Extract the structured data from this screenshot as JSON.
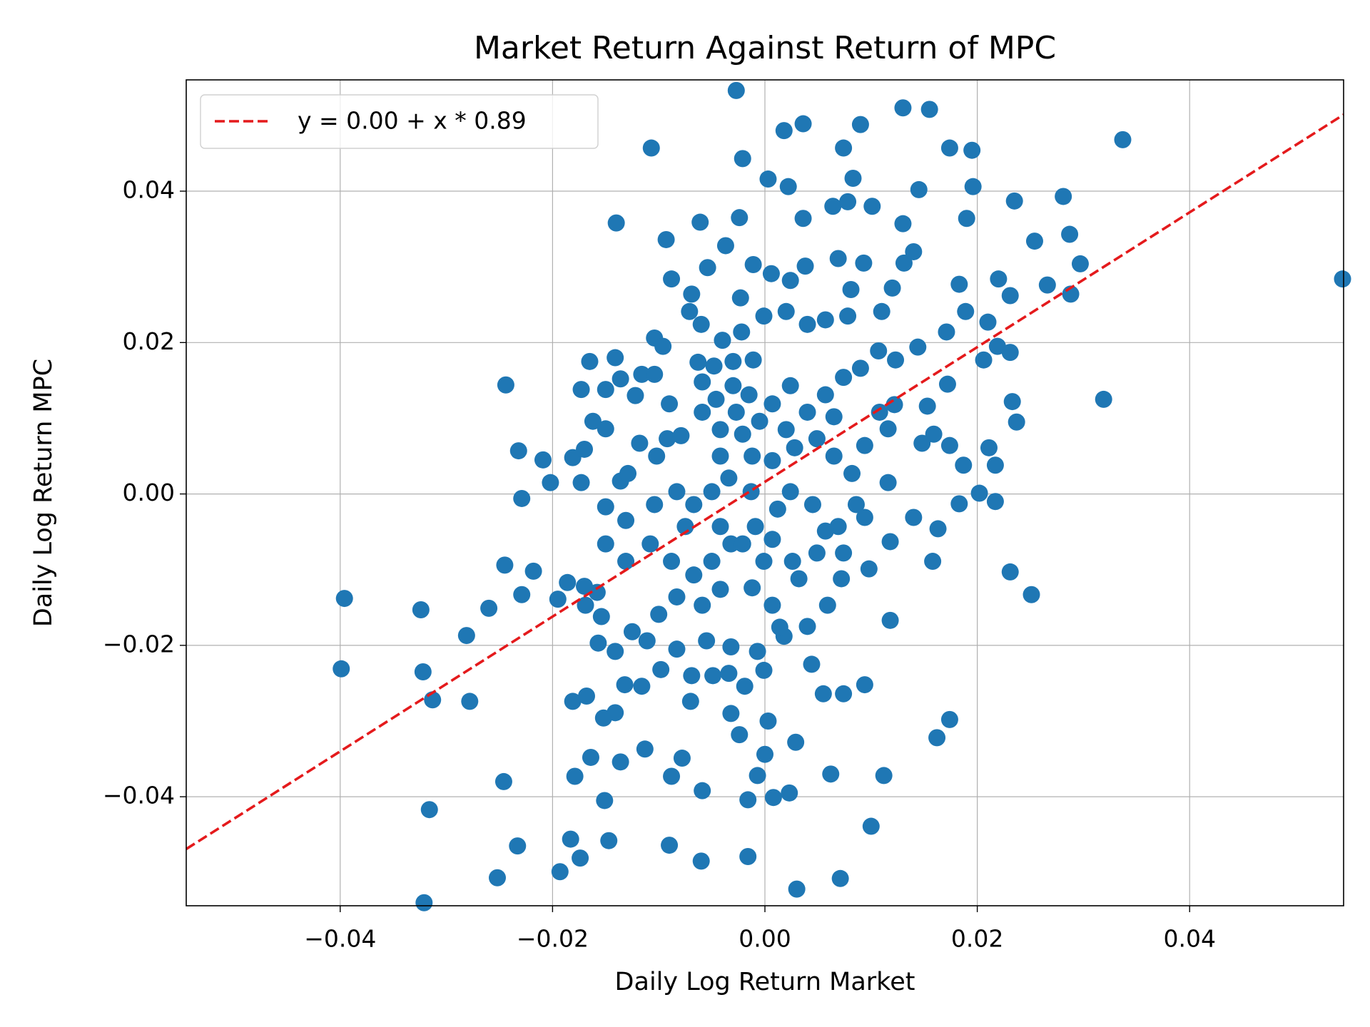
{
  "chart_data": {
    "type": "scatter",
    "title": "Market Return Against Return of MPC",
    "xlabel": "Daily Log Return Market",
    "ylabel": "Daily Log Return MPC",
    "color": "#1f77b4",
    "grid": true,
    "legend": "upper left",
    "xlim": [
      -0.0545,
      0.0545
    ],
    "ylim": [
      -0.0544,
      0.0547
    ],
    "xticks": [
      {
        "value": -0.04,
        "label": "−0.04"
      },
      {
        "value": -0.02,
        "label": "−0.02"
      },
      {
        "value": 0,
        "label": "0.00"
      },
      0.02,
      0.04
    ],
    "yticks": [
      {
        "value": -0.04,
        "label": "−0.04"
      },
      {
        "value": -0.02,
        "label": "−0.02"
      },
      {
        "value": 0,
        "label": "0.00"
      },
      0.02,
      0.04
    ],
    "fit": {
      "label": "y = 0.00 + x * 0.89",
      "intercept": 0.0016,
      "slope": 0.89,
      "color": "#e41a1c"
    },
    "x": [
      -0.0027,
      0.013,
      0.0155,
      0.0036,
      0.0018,
      0.009,
      0.0337,
      -0.0107,
      -0.0021,
      0.0074,
      0.0174,
      0.0195,
      0.0003,
      0.0083,
      0.0145,
      0.0196,
      0.0022,
      0.0281,
      0.0235,
      -0.014,
      -0.0061,
      -0.0024,
      0.0036,
      0.013,
      0.019,
      -0.0093,
      0.0254,
      0.0287,
      0.0544,
      0.0297,
      -0.0088,
      0.0183,
      0.0266,
      0.0288,
      0.022,
      0.0231,
      0.0319,
      0.0233,
      0.0237,
      0.0231,
      0.0251,
      -0.0244,
      -0.0232,
      -0.0209,
      -0.0202,
      -0.0229,
      -0.0245,
      -0.0218,
      -0.0229,
      -0.0195,
      -0.026,
      -0.0324,
      -0.0396,
      -0.0281,
      -0.0399,
      -0.0322,
      -0.0313,
      -0.0278,
      -0.0246,
      -0.0316,
      -0.0233,
      -0.0252,
      -0.0321,
      -0.0193,
      -0.0183,
      -0.0174,
      -0.0179,
      -0.0147,
      -0.0151,
      -0.009,
      -0.006,
      -0.0016,
      0.003,
      0.0071,
      0.01,
      0.0062,
      0.0112,
      0.0162,
      0.0174,
      0.0094,
      0.0074,
      0.0055,
      0.0029,
      0.0023,
      0.0008,
      -0.0016,
      -0.0007,
      -0.0059,
      -0.0088,
      -0.0078,
      -0.0136,
      -0.0113,
      -0.0164,
      -0.0152,
      -0.0141,
      -0.0181,
      -0.0168,
      -0.0132,
      -0.0116,
      -0.0098,
      -0.0069,
      -0.007,
      -0.0049,
      -0.0034,
      -0.0019,
      -0.0001,
      0.0003,
      0.0,
      -0.0024,
      -0.0032,
      0.0044,
      0.0018,
      0.004,
      0.0014,
      -0.0007,
      -0.0032,
      -0.0055,
      -0.0083,
      -0.0111,
      -0.0141,
      -0.0157,
      -0.0125,
      -0.0154,
      -0.0169,
      -0.0158,
      -0.0186,
      -0.017,
      -0.01,
      -0.0083,
      -0.0059,
      -0.0042,
      -0.0012,
      0.0007,
      0.0032,
      0.0059,
      0.0072,
      0.0098,
      0.0118,
      0.0158,
      0.0118,
      0.0163,
      0.014,
      0.0183,
      0.0202,
      0.0217,
      0.0187,
      0.0211,
      0.0217,
      0.0174,
      0.0148,
      0.0159,
      0.0206,
      0.0219,
      0.0231,
      0.021,
      0.0189,
      0.0171,
      0.0172,
      0.0153,
      0.0122,
      0.0116,
      0.0094,
      0.0116,
      0.0086,
      0.0069,
      0.0049,
      0.0026,
      0.0007,
      -0.0009,
      -0.0032,
      -0.005,
      -0.0067,
      -0.0088,
      -0.0108,
      -0.0131,
      -0.015,
      -0.0131,
      -0.015,
      -0.0173,
      -0.0181,
      -0.017,
      -0.0162,
      -0.015,
      -0.0136,
      -0.0129,
      -0.0118,
      -0.0102,
      -0.0092,
      -0.0079,
      -0.0059,
      -0.0042,
      -0.0027,
      -0.0015,
      -0.0005,
      0.0007,
      0.0024,
      0.004,
      0.0057,
      0.0074,
      0.009,
      0.0107,
      0.0123,
      0.0144,
      0.0131,
      0.014,
      0.012,
      0.011,
      0.0093,
      0.0081,
      0.0069,
      0.0064,
      0.0078,
      0.0101,
      0.0038,
      0.0024,
      0.0006,
      -0.0011,
      -0.0023,
      -0.0037,
      -0.0054,
      -0.0069,
      -0.0071,
      -0.006,
      -0.004,
      -0.0022,
      -0.0001,
      0.002,
      0.004,
      0.0057,
      0.0078,
      -0.0104,
      -0.0096,
      -0.0165,
      -0.0141,
      -0.0173,
      -0.015,
      -0.0136,
      -0.0122,
      -0.0116,
      -0.0104,
      -0.009,
      -0.0063,
      -0.0048,
      -0.003,
      -0.0011,
      -0.003,
      -0.0046,
      -0.0059,
      -0.0012,
      0.0007,
      0.0028,
      0.0049,
      0.0065,
      0.0082,
      0.0024,
      0.0045,
      0.0012,
      -0.0013,
      -0.0034,
      -0.005,
      -0.0067,
      -0.0083,
      -0.0104,
      -0.0075,
      -0.0042,
      -0.0021,
      -0.0001,
      0.0074,
      0.0057,
      0.0094,
      -0.0042,
      -0.0021,
      0.002,
      0.0065,
      0.0108
    ],
    "values": [
      0.0533,
      0.051,
      0.0508,
      0.0489,
      0.048,
      0.0488,
      0.0468,
      0.0457,
      0.0443,
      0.0457,
      0.0457,
      0.0454,
      0.0416,
      0.0417,
      0.0402,
      0.0406,
      0.0406,
      0.0393,
      0.0387,
      0.0358,
      0.0359,
      0.0365,
      0.0364,
      0.0357,
      0.0364,
      0.0336,
      0.0334,
      0.0343,
      0.0284,
      0.0304,
      0.0284,
      0.0277,
      0.0276,
      0.0264,
      0.0284,
      0.0262,
      0.0125,
      0.0122,
      0.0095,
      -0.0103,
      -0.0133,
      0.0144,
      0.0057,
      0.0045,
      0.0015,
      -0.0006,
      -0.0094,
      -0.0102,
      -0.0133,
      -0.0139,
      -0.0151,
      -0.0153,
      -0.0138,
      -0.0187,
      -0.0231,
      -0.0235,
      -0.0272,
      -0.0274,
      -0.038,
      -0.0417,
      -0.0465,
      -0.0507,
      -0.054,
      -0.0499,
      -0.0456,
      -0.0481,
      -0.0373,
      -0.0458,
      -0.0405,
      -0.0464,
      -0.0485,
      -0.0479,
      -0.0522,
      -0.0508,
      -0.0439,
      -0.037,
      -0.0372,
      -0.0322,
      -0.0298,
      -0.0252,
      -0.0264,
      -0.0264,
      -0.0328,
      -0.0395,
      -0.0401,
      -0.0404,
      -0.0372,
      -0.0392,
      -0.0373,
      -0.0349,
      -0.0354,
      -0.0337,
      -0.0348,
      -0.0296,
      -0.0289,
      -0.0274,
      -0.0267,
      -0.0252,
      -0.0254,
      -0.0232,
      -0.024,
      -0.0274,
      -0.024,
      -0.0237,
      -0.0254,
      -0.0233,
      -0.03,
      -0.0344,
      -0.0318,
      -0.029,
      -0.0225,
      -0.0188,
      -0.0175,
      -0.0176,
      -0.0208,
      -0.0202,
      -0.0194,
      -0.0205,
      -0.0194,
      -0.0208,
      -0.0197,
      -0.0182,
      -0.0162,
      -0.0147,
      -0.013,
      -0.0117,
      -0.0122,
      -0.0159,
      -0.0136,
      -0.0147,
      -0.0126,
      -0.0124,
      -0.0147,
      -0.0112,
      -0.0147,
      -0.0112,
      -0.0099,
      -0.0063,
      -0.0089,
      -0.0167,
      -0.0046,
      -0.0031,
      -0.0013,
      0.0001,
      -0.001,
      0.0038,
      0.0061,
      0.0038,
      0.0064,
      0.0067,
      0.0079,
      0.0177,
      0.0195,
      0.0187,
      0.0227,
      0.0241,
      0.0214,
      0.0145,
      0.0116,
      0.0118,
      0.0086,
      0.0064,
      0.0015,
      -0.0014,
      -0.0043,
      -0.0078,
      -0.0089,
      -0.006,
      -0.0043,
      -0.0066,
      -0.0089,
      -0.0107,
      -0.0089,
      -0.0066,
      -0.0089,
      -0.0066,
      -0.0035,
      -0.0017,
      0.0015,
      0.0048,
      0.0059,
      0.0096,
      0.0086,
      0.0017,
      0.0027,
      0.0067,
      0.005,
      0.0073,
      0.0077,
      0.0108,
      0.0085,
      0.0108,
      0.0131,
      0.0096,
      0.0119,
      0.0143,
      0.0108,
      0.0131,
      0.0154,
      0.0166,
      0.0189,
      0.0177,
      0.0194,
      0.0305,
      0.032,
      0.0272,
      0.0241,
      0.0305,
      0.027,
      0.0311,
      0.038,
      0.0386,
      0.038,
      0.0301,
      0.0282,
      0.0291,
      0.0303,
      0.0259,
      0.0328,
      0.0299,
      0.0264,
      0.0241,
      0.0224,
      0.0203,
      0.0214,
      0.0235,
      0.0241,
      0.0224,
      0.023,
      0.0235,
      0.0206,
      0.0195,
      0.0175,
      0.018,
      0.0138,
      0.0138,
      0.0152,
      0.013,
      0.0158,
      0.0158,
      0.0119,
      0.0174,
      0.0169,
      0.0175,
      0.0177,
      0.0143,
      0.0125,
      0.0148,
      0.005,
      0.0044,
      0.0061,
      0.0073,
      0.005,
      0.0027,
      0.0003,
      -0.0014,
      -0.002,
      0.0003,
      0.0021,
      0.0003,
      -0.0014,
      0.0003,
      -0.0014,
      -0.0043,
      -0.0043,
      -0.0066,
      -0.0089,
      -0.0078,
      -0.0049,
      -0.0031,
      0.005,
      0.0079,
      0.0085,
      0.0102,
      0.0108
    ]
  }
}
